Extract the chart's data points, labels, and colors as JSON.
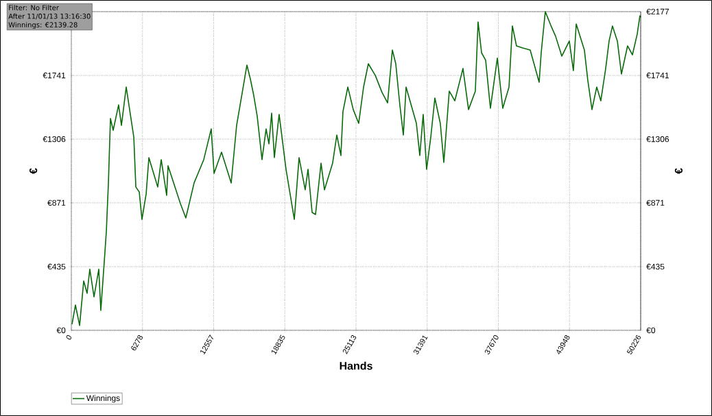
{
  "chart_data": {
    "type": "line",
    "xlabel": "Hands",
    "ylabel": "€",
    "y2label": "€",
    "annotations": [
      "Filter: No Filter",
      "After 11/01/13 13:16:30",
      "Winnings: €2139.28"
    ],
    "xlim": [
      0,
      50226
    ],
    "ylim": [
      0,
      2177
    ],
    "y2lim": [
      0,
      2177
    ],
    "xticks": [
      0,
      6278,
      12557,
      18835,
      25113,
      31391,
      37670,
      43948,
      50226
    ],
    "yticks": [
      {
        "value": 0,
        "label": "€0"
      },
      {
        "value": 435,
        "label": "€435"
      },
      {
        "value": 871,
        "label": "€871"
      },
      {
        "value": 1306,
        "label": "€1306"
      },
      {
        "value": 1741,
        "label": "€1741"
      },
      {
        "value": 2177,
        "label": null
      }
    ],
    "y2ticks": [
      {
        "value": 0,
        "label": "€0"
      },
      {
        "value": 435,
        "label": "€435"
      },
      {
        "value": 871,
        "label": "€871"
      },
      {
        "value": 1306,
        "label": "€1306"
      },
      {
        "value": 1741,
        "label": "€1741"
      },
      {
        "value": 2177,
        "label": "€2177"
      }
    ],
    "grid": true,
    "legend": "bottom left",
    "line_style": "solid",
    "series": [
      {
        "name": "Winnings",
        "color": "#0b6a0b",
        "x": [
          60,
          360,
          730,
          1090,
          1390,
          1630,
          2000,
          2420,
          2600,
          2900,
          3090,
          3270,
          3450,
          3690,
          4170,
          4420,
          4840,
          5260,
          5510,
          5690,
          5990,
          6230,
          6600,
          6840,
          7620,
          7930,
          8410,
          8530,
          9620,
          10100,
          10830,
          11680,
          12340,
          12590,
          13250,
          14100,
          14580,
          14890,
          15490,
          15790,
          16100,
          16400,
          16820,
          17180,
          17430,
          17670,
          17910,
          18330,
          18940,
          19670,
          20090,
          20630,
          20880,
          21240,
          21540,
          22030,
          22330,
          23050,
          23420,
          23780,
          23960,
          24390,
          24870,
          25350,
          25780,
          26200,
          26810,
          27410,
          27900,
          28320,
          28620,
          28980,
          29290,
          29530,
          30440,
          30740,
          31040,
          31340,
          31710,
          32070,
          32550,
          32860,
          33340,
          33830,
          34550,
          35040,
          35640,
          35880,
          36190,
          36550,
          36970,
          37580,
          38060,
          38610,
          38910,
          39270,
          39820,
          40480,
          41270,
          41450,
          41810,
          42300,
          42720,
          43270,
          43930,
          44290,
          44540,
          45260,
          45560,
          45930,
          46350,
          46710,
          47140,
          47440,
          47740,
          48170,
          48530,
          49070,
          49500,
          49920,
          50160,
          50226
        ],
        "values": [
          42,
          173,
          33,
          337,
          253,
          417,
          229,
          417,
          136,
          464,
          679,
          1007,
          1447,
          1367,
          1540,
          1400,
          1662,
          1447,
          1320,
          979,
          946,
          758,
          932,
          1180,
          979,
          1166,
          922,
          1124,
          866,
          768,
          1007,
          1166,
          1376,
          1072,
          1217,
          1007,
          1400,
          1540,
          1812,
          1718,
          1601,
          1461,
          1166,
          1376,
          1274,
          1484,
          1180,
          1475,
          1100,
          758,
          1180,
          960,
          1100,
          805,
          791,
          1142,
          960,
          1142,
          1334,
          1194,
          1494,
          1662,
          1508,
          1414,
          1662,
          1821,
          1742,
          1625,
          1554,
          1915,
          1821,
          1540,
          1334,
          1662,
          1414,
          1194,
          1475,
          1100,
          1320,
          1587,
          1414,
          1147,
          1634,
          1568,
          1789,
          1508,
          1634,
          2107,
          1896,
          1845,
          1517,
          1859,
          1517,
          1662,
          2079,
          1943,
          1929,
          1915,
          1695,
          1896,
          2177,
          2083,
          2009,
          1873,
          1976,
          1774,
          2093,
          1915,
          1709,
          1508,
          1662,
          1568,
          1789,
          1976,
          2079,
          1976,
          1751,
          1943,
          1882,
          2023,
          2149,
          2139
        ]
      }
    ]
  }
}
